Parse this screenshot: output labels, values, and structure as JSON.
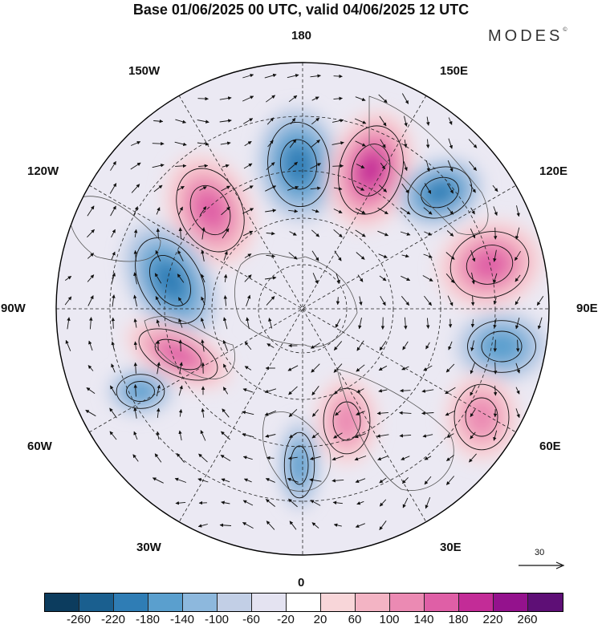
{
  "title": "Base 01/06/2025 00 UTC, valid 04/06/2025 12 UTC",
  "brand": "MODES",
  "brand_mark": "©",
  "longitude_labels": {
    "top": "180",
    "top_left": "150W",
    "top_right": "150E",
    "upper_left": "120W",
    "upper_right": "120E",
    "left": "90W",
    "right": "90E",
    "lower_left": "60W",
    "lower_right": "60E",
    "bottom_left": "30W",
    "bottom_right": "30E",
    "bottom": "0"
  },
  "reference_vector": {
    "label": "30"
  },
  "colorbar": {
    "colors": [
      "#0c3c5e",
      "#1a5f8f",
      "#2f7db5",
      "#5a9fce",
      "#8db8dd",
      "#c2cfe6",
      "#e4e3f1",
      "#ffffff",
      "#f8d6d9",
      "#f3b4c4",
      "#eb8ab3",
      "#df5fa6",
      "#c32c97",
      "#94128d",
      "#5e0f76"
    ],
    "tick_labels": [
      "-260",
      "-220",
      "-180",
      "-140",
      "-100",
      "-60",
      "-20",
      "20",
      "60",
      "100",
      "140",
      "180",
      "220",
      "260"
    ]
  },
  "anomaly_centers": [
    {
      "sign": "negative",
      "intensity": 3,
      "region": "north-pacific"
    },
    {
      "sign": "positive",
      "intensity": 4,
      "region": "kamchatka"
    },
    {
      "sign": "negative",
      "intensity": 3,
      "region": "east-siberia"
    },
    {
      "sign": "positive",
      "intensity": 3,
      "region": "alaska"
    },
    {
      "sign": "negative",
      "intensity": 3,
      "region": "canada"
    },
    {
      "sign": "positive",
      "intensity": 3,
      "region": "central-siberia"
    },
    {
      "sign": "positive",
      "intensity": 3,
      "region": "hudson-bay"
    },
    {
      "sign": "negative",
      "intensity": 2,
      "region": "west-siberia"
    },
    {
      "sign": "negative",
      "intensity": 2,
      "region": "north-atlantic-west"
    },
    {
      "sign": "positive",
      "intensity": 2,
      "region": "scandinavia"
    },
    {
      "sign": "negative",
      "intensity": 2,
      "region": "north-atlantic-east"
    },
    {
      "sign": "positive",
      "intensity": 2,
      "region": "caspian"
    }
  ]
}
